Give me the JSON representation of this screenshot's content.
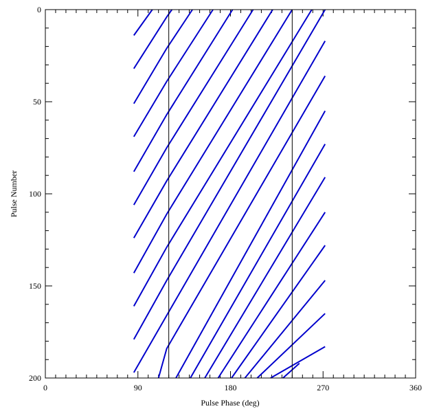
{
  "chart_data": {
    "type": "line",
    "xlabel": "Pulse Phase (deg)",
    "ylabel": "Pulse Number",
    "xlim": [
      0,
      360
    ],
    "ylim": [
      0,
      200
    ],
    "y_inverted": true,
    "x_major_ticks": [
      0,
      90,
      180,
      270,
      360
    ],
    "x_minor_step": 10,
    "y_major_ticks": [
      0,
      50,
      100,
      150,
      200
    ],
    "y_minor_step": 10,
    "grid": false,
    "vertical_markers_deg": [
      120,
      240
    ],
    "series": [
      {
        "x": [
          86,
          104
        ],
        "y": [
          14,
          0
        ]
      },
      {
        "x": [
          86,
          118,
          123
        ],
        "y": [
          32,
          4,
          0
        ]
      },
      {
        "x": [
          86,
          118,
          143
        ],
        "y": [
          51,
          21,
          0
        ]
      },
      {
        "x": [
          86,
          118,
          163
        ],
        "y": [
          69,
          39,
          0
        ]
      },
      {
        "x": [
          86,
          118,
          182
        ],
        "y": [
          88,
          57,
          0
        ]
      },
      {
        "x": [
          86,
          118,
          202
        ],
        "y": [
          106,
          75,
          0
        ]
      },
      {
        "x": [
          86,
          118,
          221
        ],
        "y": [
          124,
          93,
          0
        ]
      },
      {
        "x": [
          86,
          118,
          240
        ],
        "y": [
          143,
          111,
          0
        ]
      },
      {
        "x": [
          86,
          118,
          259
        ],
        "y": [
          161,
          129,
          0
        ]
      },
      {
        "x": [
          86,
          118,
          272
        ],
        "y": [
          179,
          147,
          0
        ]
      },
      {
        "x": [
          86,
          118,
          272
        ],
        "y": [
          197,
          166,
          17
        ]
      },
      {
        "x": [
          110,
          118,
          272
        ],
        "y": [
          200,
          184,
          36
        ]
      },
      {
        "x": [
          127,
          272
        ],
        "y": [
          200,
          55
        ]
      },
      {
        "x": [
          141,
          272
        ],
        "y": [
          200,
          73
        ]
      },
      {
        "x": [
          155,
          272
        ],
        "y": [
          200,
          91
        ]
      },
      {
        "x": [
          168,
          272
        ],
        "y": [
          200,
          110
        ]
      },
      {
        "x": [
          181,
          272
        ],
        "y": [
          200,
          128
        ]
      },
      {
        "x": [
          194,
          272
        ],
        "y": [
          200,
          147
        ]
      },
      {
        "x": [
          206,
          272
        ],
        "y": [
          200,
          165
        ]
      },
      {
        "x": [
          219,
          272
        ],
        "y": [
          200,
          183
        ]
      },
      {
        "x": [
          231,
          247
        ],
        "y": [
          200,
          192
        ]
      }
    ]
  }
}
